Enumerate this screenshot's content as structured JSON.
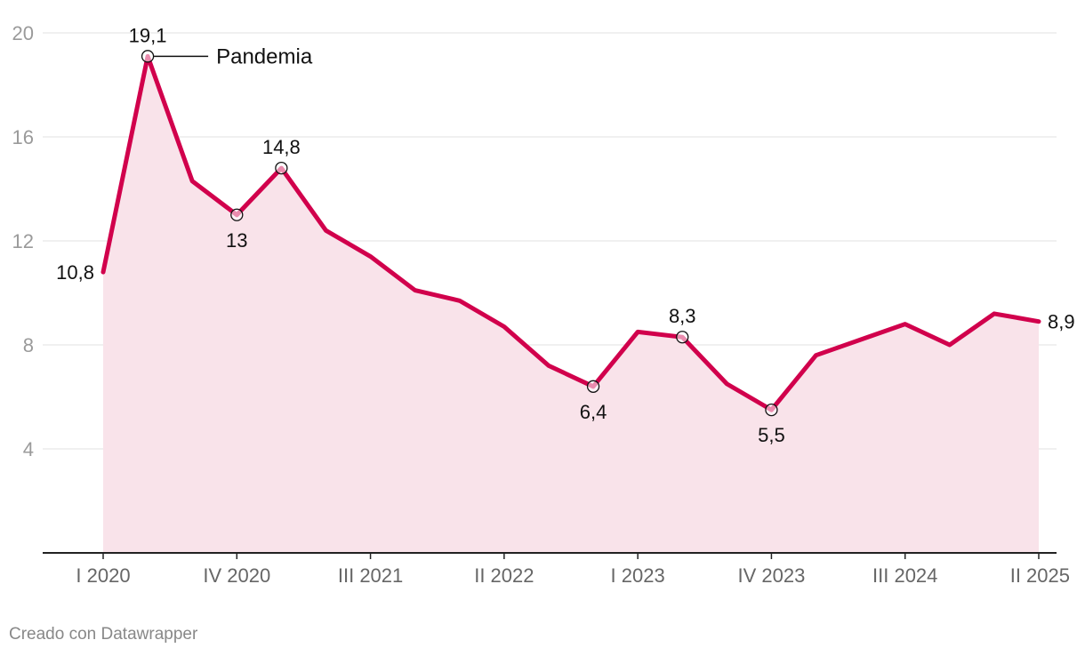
{
  "chart_data": {
    "type": "area",
    "title": "",
    "xlabel": "",
    "ylabel": "",
    "ylim": [
      0,
      20
    ],
    "yticks": [
      4,
      8,
      12,
      16,
      20
    ],
    "grid": true,
    "x_tick_labels": [
      "I 2020",
      "IV 2020",
      "III 2021",
      "II 2022",
      "I 2023",
      "IV 2023",
      "III 2024",
      "II 2025"
    ],
    "series": [
      {
        "color": "#d1004c",
        "fill_color": "#f9e3ea",
        "x": [
          "I 2020",
          "II 2020",
          "III 2020",
          "IV 2020",
          "I 2021",
          "II 2021",
          "III 2021",
          "IV 2021",
          "I 2022",
          "II 2022",
          "III 2022",
          "IV 2022",
          "I 2023",
          "II 2023",
          "III 2023",
          "IV 2023",
          "I 2024",
          "II 2024",
          "III 2024",
          "IV 2024",
          "I 2025",
          "II 2025"
        ],
        "values": [
          10.8,
          19.1,
          14.3,
          13,
          14.8,
          12.4,
          11.4,
          10.1,
          9.7,
          8.7,
          7.2,
          6.4,
          8.5,
          8.3,
          6.5,
          5.5,
          7.6,
          8.2,
          8.8,
          8.0,
          9.2,
          8.9
        ]
      }
    ],
    "data_labels": [
      {
        "index": 0,
        "text": "10,8"
      },
      {
        "index": 1,
        "text": "19,1"
      },
      {
        "index": 3,
        "text": "13"
      },
      {
        "index": 4,
        "text": "14,8"
      },
      {
        "index": 11,
        "text": "6,4"
      },
      {
        "index": 13,
        "text": "8,3"
      },
      {
        "index": 15,
        "text": "5,5"
      },
      {
        "index": 21,
        "text": "8,9"
      }
    ],
    "annotation": {
      "index": 1,
      "text": "Pandemia"
    }
  },
  "credit": "Creado con Datawrapper"
}
